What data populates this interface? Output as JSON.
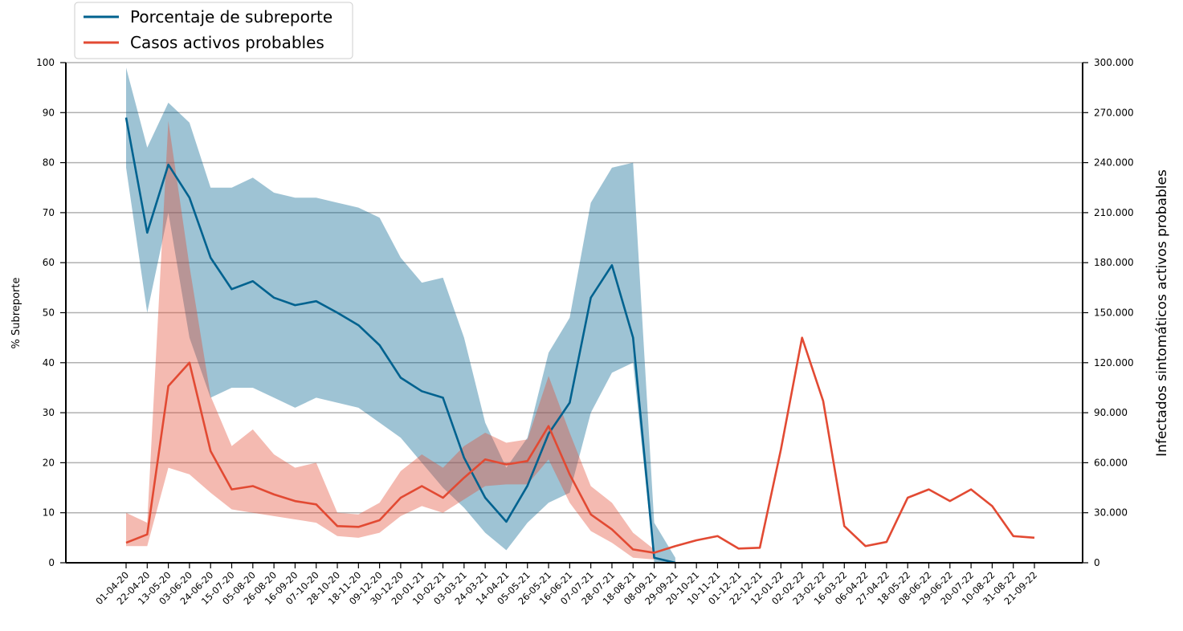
{
  "chart_data": {
    "type": "line",
    "y_label": "% Subreporte",
    "y2_label": "Infectados sintomáticos activos probables",
    "categories": [
      "01-04-20",
      "22-04-20",
      "13-05-20",
      "03-06-20",
      "24-06-20",
      "15-07-20",
      "05-08-20",
      "26-08-20",
      "16-09-20",
      "07-10-20",
      "28-10-20",
      "18-11-20",
      "09-12-20",
      "30-12-20",
      "20-01-21",
      "10-02-21",
      "03-03-21",
      "24-03-21",
      "14-04-21",
      "05-05-21",
      "26-05-21",
      "16-06-21",
      "07-07-21",
      "28-07-21",
      "18-08-21",
      "08-09-21",
      "29-09-21",
      "20-10-21",
      "10-11-21",
      "01-12-21",
      "22-12-21",
      "12-01-22",
      "02-02-22",
      "23-02-22",
      "16-03-22",
      "06-04-22",
      "27-04-22",
      "18-05-22",
      "08-06-22",
      "29-06-22",
      "20-07-22",
      "10-08-22",
      "31-08-22",
      "21-09-22"
    ],
    "ylim": [
      0,
      100
    ],
    "yticks": [
      0,
      10,
      20,
      30,
      40,
      50,
      60,
      70,
      80,
      90,
      100
    ],
    "y2lim": [
      0,
      300000
    ],
    "y2ticks": [
      0,
      {
        "value": 30000,
        "label": "30.000"
      },
      {
        "value": 60000,
        "label": "60.000"
      },
      {
        "value": 90000,
        "label": "90.000"
      },
      {
        "value": 120000,
        "label": "120.000"
      },
      {
        "value": 150000,
        "label": "150.000"
      },
      {
        "value": 180000,
        "label": "180.000"
      },
      {
        "value": 210000,
        "label": "210.000"
      },
      {
        "value": 240000,
        "label": "240.000"
      },
      {
        "value": 270000,
        "label": "270.000"
      },
      {
        "value": 300000,
        "label": "300.000"
      }
    ],
    "grid": true,
    "legend": "upper left",
    "series": [
      {
        "name": "Porcentaje de subreporte",
        "color": "#00628f",
        "band_color": "#9ac1d6",
        "axis": "y",
        "values": [
          89,
          66,
          79.6,
          73,
          61,
          54.7,
          56.3,
          53,
          51.5,
          52.3,
          50,
          47.5,
          43.5,
          37,
          34.3,
          33,
          21,
          13,
          8.2,
          15.4,
          25.8,
          32,
          53,
          59.5,
          45,
          1,
          0,
          null,
          null,
          null,
          null,
          null,
          null,
          null,
          null,
          null,
          null,
          null,
          null,
          null,
          null,
          null,
          null,
          null
        ],
        "band_high": [
          99,
          83,
          92,
          88,
          75,
          75,
          77,
          74,
          73,
          73,
          72,
          71,
          69,
          61,
          56,
          57,
          45,
          28,
          19,
          25,
          42,
          49,
          72,
          79,
          80,
          8,
          1,
          null,
          null,
          null,
          null,
          null,
          null,
          null,
          null,
          null,
          null,
          null,
          null,
          null,
          null,
          null,
          null,
          null
        ],
        "band_low": [
          79,
          50,
          70,
          45,
          33,
          35,
          35,
          33,
          31,
          33,
          32,
          31,
          28,
          25,
          20,
          15,
          11,
          6,
          2.5,
          8,
          12,
          14,
          30,
          38,
          40,
          0,
          0,
          null,
          null,
          null,
          null,
          null,
          null,
          null,
          null,
          null,
          null,
          null,
          null,
          null,
          null,
          null,
          null,
          null
        ]
      },
      {
        "name": "Casos activos probables",
        "color": "#e24a33",
        "band_color": "#f2b1a8",
        "axis": "y2",
        "values": [
          12000,
          17000,
          106000,
          120000,
          67000,
          44000,
          46000,
          41000,
          37000,
          35000,
          22000,
          21500,
          25500,
          39000,
          46000,
          39000,
          51000,
          62000,
          59000,
          61000,
          82000,
          53000,
          29000,
          20000,
          8000,
          6000,
          10000,
          13500,
          16000,
          8500,
          9000,
          68000,
          135000,
          97000,
          22000,
          10000,
          12500,
          39000,
          44000,
          37000,
          44000,
          34000,
          16000,
          15000
        ],
        "band_high": [
          30000,
          24000,
          265000,
          178000,
          100000,
          70000,
          80000,
          65000,
          57000,
          60000,
          30000,
          29000,
          36000,
          55000,
          65000,
          57000,
          70000,
          78000,
          72000,
          74000,
          112000,
          78000,
          46000,
          36000,
          18000,
          8000,
          null,
          null,
          null,
          null,
          null,
          null,
          null,
          null,
          null,
          null,
          null,
          null,
          null,
          null,
          null,
          null,
          null,
          null
        ],
        "band_low": [
          10000,
          10000,
          57000,
          53000,
          42000,
          32000,
          30000,
          28000,
          26000,
          24000,
          16000,
          15000,
          18000,
          28000,
          34000,
          30000,
          38000,
          46000,
          47000,
          47000,
          62000,
          36000,
          19000,
          12000,
          3000,
          2000,
          null,
          null,
          null,
          null,
          null,
          null,
          null,
          null,
          null,
          null,
          null,
          null,
          null,
          null,
          null,
          null,
          null,
          null
        ]
      }
    ]
  }
}
